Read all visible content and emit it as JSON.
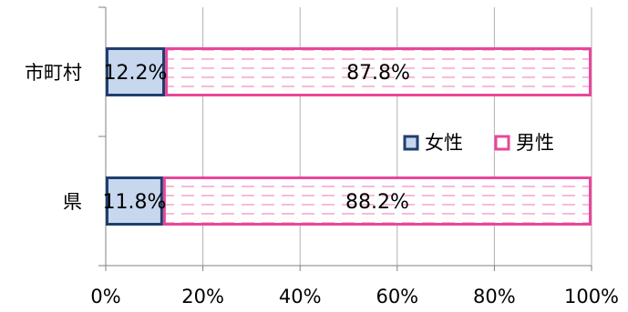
{
  "chart_data": {
    "type": "bar",
    "orientation": "horizontal",
    "stacked": true,
    "categories": [
      "市町村",
      "県"
    ],
    "series": [
      {
        "name": "女性",
        "values": [
          12.2,
          11.8
        ],
        "labels": [
          "12.2%",
          "11.8%"
        ]
      },
      {
        "name": "男性",
        "values": [
          87.8,
          88.2
        ],
        "labels": [
          "87.8%",
          "88.2%"
        ]
      }
    ],
    "xlim": [
      0,
      100
    ],
    "x_ticks": [
      0,
      20,
      40,
      60,
      80,
      100
    ],
    "x_tick_labels": [
      "0%",
      "20%",
      "40%",
      "60%",
      "80%",
      "100%"
    ],
    "grid": "vertical",
    "legend_position": "right"
  },
  "colors": {
    "female_fill": "#c6d7ee",
    "female_stroke": "#1f3f6e",
    "male_fill": "#ffffff",
    "male_stroke": "#e8479a",
    "male_pattern": "#f3a6cb",
    "grid": "#b0b0b0",
    "axis": "#808080",
    "text": "#000000"
  }
}
